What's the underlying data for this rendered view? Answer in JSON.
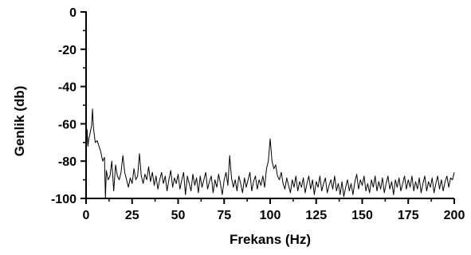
{
  "chart_data": {
    "type": "line",
    "title": "",
    "xlabel": "Frekans (Hz)",
    "ylabel": "Genlik (db)",
    "xlim": [
      0,
      200
    ],
    "ylim": [
      -100,
      0
    ],
    "x_ticks": [
      0,
      25,
      50,
      75,
      100,
      125,
      150,
      175,
      200
    ],
    "y_ticks": [
      0,
      -20,
      -40,
      -60,
      -80,
      -100
    ],
    "x_tick_labels": [
      "0",
      "25",
      "50",
      "75",
      "100",
      "125",
      "150",
      "175",
      "200"
    ],
    "y_tick_labels": [
      "0",
      "-20",
      "-40",
      "-60",
      "-80",
      "-100"
    ],
    "grid": false,
    "series": [
      {
        "color": "#000000",
        "points": [
          [
            0,
            -78
          ],
          [
            0.5,
            -63
          ],
          [
            1,
            -72
          ],
          [
            1.5,
            -68
          ],
          [
            2,
            -66
          ],
          [
            3,
            -61
          ],
          [
            3.5,
            -52
          ],
          [
            4,
            -62
          ],
          [
            5,
            -70
          ],
          [
            6,
            -69
          ],
          [
            7,
            -72
          ],
          [
            8,
            -75
          ],
          [
            9,
            -80
          ],
          [
            10,
            -78
          ],
          [
            10.5,
            -100
          ],
          [
            11,
            -85
          ],
          [
            12,
            -90
          ],
          [
            13,
            -88
          ],
          [
            14,
            -80
          ],
          [
            15,
            -96
          ],
          [
            16,
            -82
          ],
          [
            17,
            -88
          ],
          [
            18,
            -90
          ],
          [
            19,
            -86
          ],
          [
            20,
            -77
          ],
          [
            21,
            -86
          ],
          [
            22,
            -90
          ],
          [
            23,
            -94
          ],
          [
            24,
            -89
          ],
          [
            25,
            -92
          ],
          [
            26,
            -84
          ],
          [
            27,
            -90
          ],
          [
            28,
            -88
          ],
          [
            29,
            -76
          ],
          [
            30,
            -88
          ],
          [
            31,
            -92
          ],
          [
            32,
            -87
          ],
          [
            33,
            -90
          ],
          [
            34,
            -83
          ],
          [
            35,
            -91
          ],
          [
            36,
            -86
          ],
          [
            37,
            -93
          ],
          [
            38,
            -88
          ],
          [
            39,
            -95
          ],
          [
            40,
            -90
          ],
          [
            41,
            -86
          ],
          [
            42,
            -92
          ],
          [
            43,
            -88
          ],
          [
            44,
            -96
          ],
          [
            45,
            -90
          ],
          [
            46,
            -85
          ],
          [
            47,
            -94
          ],
          [
            48,
            -89
          ],
          [
            49,
            -92
          ],
          [
            50,
            -87
          ],
          [
            51,
            -95
          ],
          [
            52,
            -90
          ],
          [
            53,
            -86
          ],
          [
            54,
            -98
          ],
          [
            55,
            -88
          ],
          [
            56,
            -92
          ],
          [
            57,
            -96
          ],
          [
            58,
            -87
          ],
          [
            59,
            -93
          ],
          [
            60,
            -89
          ],
          [
            61,
            -97
          ],
          [
            62,
            -88
          ],
          [
            63,
            -94
          ],
          [
            64,
            -90
          ],
          [
            65,
            -86
          ],
          [
            66,
            -95
          ],
          [
            67,
            -91
          ],
          [
            68,
            -88
          ],
          [
            69,
            -97
          ],
          [
            70,
            -90
          ],
          [
            71,
            -94
          ],
          [
            72,
            -87
          ],
          [
            73,
            -92
          ],
          [
            74,
            -98
          ],
          [
            75,
            -90
          ],
          [
            76,
            -86
          ],
          [
            77,
            -93
          ],
          [
            78,
            -77
          ],
          [
            79,
            -89
          ],
          [
            80,
            -94
          ],
          [
            81,
            -90
          ],
          [
            82,
            -96
          ],
          [
            83,
            -88
          ],
          [
            84,
            -92
          ],
          [
            85,
            -97
          ],
          [
            86,
            -89
          ],
          [
            87,
            -94
          ],
          [
            88,
            -90
          ],
          [
            89,
            -86
          ],
          [
            90,
            -96
          ],
          [
            91,
            -91
          ],
          [
            92,
            -88
          ],
          [
            93,
            -95
          ],
          [
            94,
            -90
          ],
          [
            95,
            -93
          ],
          [
            96,
            -88
          ],
          [
            97,
            -94
          ],
          [
            98,
            -84
          ],
          [
            99,
            -80
          ],
          [
            100,
            -68
          ],
          [
            101,
            -80
          ],
          [
            102,
            -84
          ],
          [
            103,
            -82
          ],
          [
            104,
            -88
          ],
          [
            105,
            -90
          ],
          [
            106,
            -86
          ],
          [
            107,
            -92
          ],
          [
            108,
            -95
          ],
          [
            109,
            -89
          ],
          [
            110,
            -93
          ],
          [
            111,
            -97
          ],
          [
            112,
            -90
          ],
          [
            113,
            -94
          ],
          [
            114,
            -88
          ],
          [
            115,
            -96
          ],
          [
            116,
            -91
          ],
          [
            117,
            -94
          ],
          [
            118,
            -89
          ],
          [
            119,
            -97
          ],
          [
            120,
            -92
          ],
          [
            121,
            -88
          ],
          [
            122,
            -95
          ],
          [
            123,
            -90
          ],
          [
            124,
            -98
          ],
          [
            125,
            -91
          ],
          [
            126,
            -94
          ],
          [
            127,
            -88
          ],
          [
            128,
            -96
          ],
          [
            129,
            -92
          ],
          [
            130,
            -89
          ],
          [
            131,
            -97
          ],
          [
            132,
            -93
          ],
          [
            133,
            -90
          ],
          [
            134,
            -95
          ],
          [
            135,
            -88
          ],
          [
            136,
            -96
          ],
          [
            137,
            -92
          ],
          [
            138,
            -98
          ],
          [
            139,
            -91
          ],
          [
            140,
            -99
          ],
          [
            141,
            -94
          ],
          [
            142,
            -90
          ],
          [
            143,
            -96
          ],
          [
            144,
            -92
          ],
          [
            145,
            -98
          ],
          [
            146,
            -91
          ],
          [
            147,
            -87
          ],
          [
            148,
            -95
          ],
          [
            149,
            -90
          ],
          [
            150,
            -93
          ],
          [
            151,
            -88
          ],
          [
            152,
            -96
          ],
          [
            153,
            -92
          ],
          [
            154,
            -97
          ],
          [
            155,
            -90
          ],
          [
            156,
            -94
          ],
          [
            157,
            -88
          ],
          [
            158,
            -96
          ],
          [
            159,
            -91
          ],
          [
            160,
            -95
          ],
          [
            161,
            -89
          ],
          [
            162,
            -97
          ],
          [
            163,
            -92
          ],
          [
            164,
            -88
          ],
          [
            165,
            -95
          ],
          [
            166,
            -91
          ],
          [
            167,
            -98
          ],
          [
            168,
            -90
          ],
          [
            169,
            -94
          ],
          [
            170,
            -89
          ],
          [
            171,
            -96
          ],
          [
            172,
            -92
          ],
          [
            173,
            -88
          ],
          [
            174,
            -95
          ],
          [
            175,
            -90
          ],
          [
            176,
            -94
          ],
          [
            177,
            -88
          ],
          [
            178,
            -96
          ],
          [
            179,
            -91
          ],
          [
            180,
            -95
          ],
          [
            181,
            -89
          ],
          [
            182,
            -97
          ],
          [
            183,
            -92
          ],
          [
            184,
            -88
          ],
          [
            185,
            -96
          ],
          [
            186,
            -91
          ],
          [
            187,
            -94
          ],
          [
            188,
            -89
          ],
          [
            189,
            -97
          ],
          [
            190,
            -92
          ],
          [
            191,
            -88
          ],
          [
            192,
            -95
          ],
          [
            193,
            -90
          ],
          [
            194,
            -96
          ],
          [
            195,
            -91
          ],
          [
            196,
            -88
          ],
          [
            197,
            -94
          ],
          [
            198,
            -89
          ],
          [
            199,
            -90
          ],
          [
            200,
            -86
          ]
        ]
      }
    ]
  }
}
